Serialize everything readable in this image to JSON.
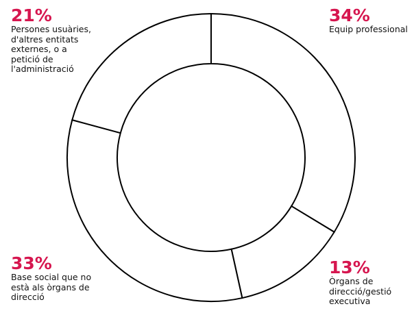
{
  "chart_data": {
    "type": "pie",
    "title": "",
    "slices": [
      {
        "value": 34,
        "label": "34%",
        "name": "Equip professional"
      },
      {
        "value": 13,
        "label": "13%",
        "name": "Òrgans de\ndirecció/gestió\nexecutiva"
      },
      {
        "value": 33,
        "label": "33%",
        "name": "Base social que no\nestà als òrgans de\ndirecció"
      },
      {
        "value": 21,
        "label": "21%",
        "name": "Persones usuàries,\nd'altres entitats\nexternes, o a\npetició de\nl'administració"
      }
    ],
    "donut": true,
    "colors": {
      "stroke": "#000000",
      "fill": "#ffffff",
      "accent": "#d6164f"
    }
  }
}
